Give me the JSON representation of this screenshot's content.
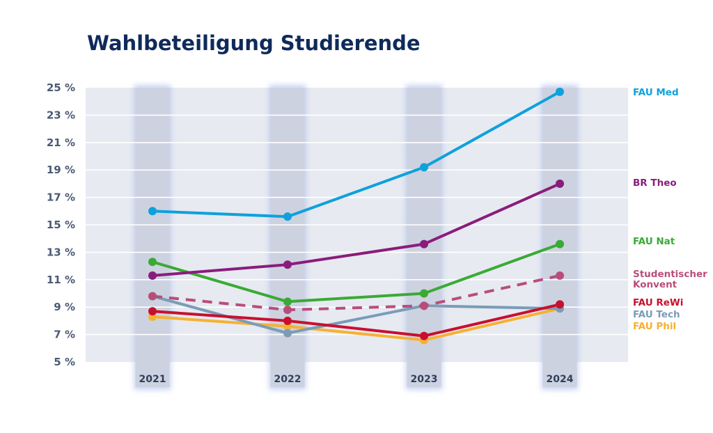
{
  "chart_data": {
    "type": "line",
    "title": "Wahlbeteiligung Studierende",
    "categories": [
      "2021",
      "2022",
      "2023",
      "2024"
    ],
    "ylim": [
      5,
      25
    ],
    "yticks": [
      5,
      7,
      9,
      11,
      13,
      15,
      17,
      19,
      21,
      23,
      25
    ],
    "ytick_labels": [
      "5 %",
      "7 %",
      "9 %",
      "11 %",
      "13 %",
      "15 %",
      "17 %",
      "19 %",
      "21 %",
      "23 %",
      "25 %"
    ],
    "grid": true,
    "legend_position": "right",
    "series": [
      {
        "name": "FAU Med",
        "values": [
          16.0,
          15.6,
          19.2,
          24.7
        ],
        "color": "#0ea1dc",
        "dashed": false
      },
      {
        "name": "BR Theo",
        "values": [
          11.3,
          12.1,
          13.6,
          18.0
        ],
        "color": "#8a1c7c",
        "dashed": false
      },
      {
        "name": "FAU Nat",
        "values": [
          12.3,
          9.4,
          10.0,
          13.6
        ],
        "color": "#3aaa35",
        "dashed": false
      },
      {
        "name": "Studentischer Konvent",
        "values": [
          9.8,
          8.8,
          9.1,
          11.3
        ],
        "color": "#b94d7a",
        "dashed": true
      },
      {
        "name": "FAU ReWi",
        "values": [
          8.7,
          8.0,
          6.9,
          9.2
        ],
        "color": "#c8102e",
        "dashed": false
      },
      {
        "name": "FAU Tech",
        "values": [
          9.8,
          7.1,
          9.1,
          8.9
        ],
        "color": "#7a9cb8",
        "dashed": false
      },
      {
        "name": "FAU Phil",
        "values": [
          8.3,
          7.6,
          6.6,
          8.9
        ],
        "color": "#f6b132",
        "dashed": false
      }
    ]
  },
  "legend": {
    "FAU Med": "FAU Med",
    "BR Theo": "BR Theo",
    "FAU Nat": "FAU Nat",
    "Studentischer Konvent": [
      "Studentischer",
      "Konvent"
    ],
    "FAU ReWi": "FAU ReWi",
    "FAU Tech": "FAU Tech",
    "FAU Phil": "FAU Phil"
  },
  "colors": {
    "title": "#0f2a5a",
    "plot_background": "#e7eaf1",
    "year_band": "#cdd2e0",
    "gridline": "#ffffff",
    "tick_text": "#4a5a74"
  }
}
